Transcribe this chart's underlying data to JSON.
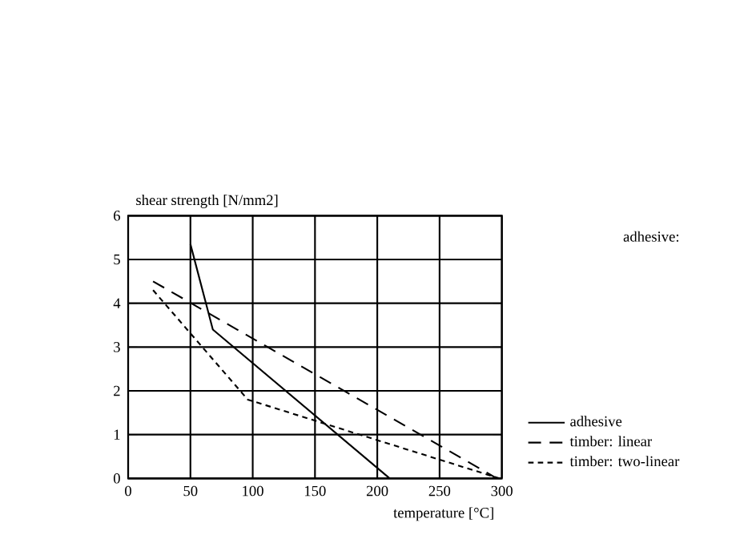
{
  "chart_data": {
    "type": "line",
    "xlabel": "temperature [°C]",
    "ylabel": "shear strength [N/mm2]",
    "annotations": [
      "adhesive:"
    ],
    "xlim": [
      0,
      300
    ],
    "xticks": [
      0,
      50,
      100,
      150,
      200,
      250,
      300
    ],
    "ylim": [
      0,
      6
    ],
    "yticks": [
      0,
      1,
      2,
      3,
      4,
      5,
      6
    ],
    "grid": true,
    "legend": "bottom right",
    "series": [
      {
        "name": "adhesive",
        "color": "#000000",
        "line_style": "solid",
        "x": [
          50,
          68,
          210
        ],
        "values": [
          5.35,
          3.4,
          0
        ]
      },
      {
        "name": "timber: linear",
        "color": "#000000",
        "line_style": "dashed",
        "x": [
          20,
          296
        ],
        "values": [
          4.5,
          0
        ]
      },
      {
        "name": "timber: two-linear",
        "color": "#000000",
        "line_style": "dotted",
        "x": [
          20,
          96,
          298
        ],
        "values": [
          4.3,
          1.8,
          0
        ]
      }
    ]
  }
}
